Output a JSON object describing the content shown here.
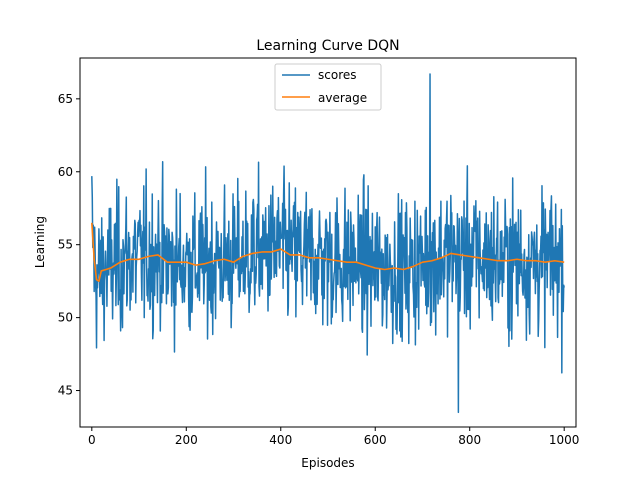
{
  "chart_data": {
    "type": "line",
    "title": "Learning Curve DQN",
    "xlabel": "Episodes",
    "ylabel": "Learning",
    "xlim": [
      -25,
      1025
    ],
    "ylim": [
      42.5,
      67.8
    ],
    "xticks": [
      0,
      200,
      400,
      600,
      800,
      1000
    ],
    "yticks": [
      45,
      50,
      55,
      60,
      65
    ],
    "xtick_labels": [
      "0",
      "200",
      "400",
      "600",
      "800",
      "1000"
    ],
    "ytick_labels": [
      "45",
      "50",
      "55",
      "60",
      "65"
    ],
    "grid": false,
    "legend": {
      "placement": "upper center",
      "entries": [
        "scores",
        "average"
      ]
    },
    "series": [
      {
        "name": "scores",
        "color": "#1f77b4",
        "x_range": [
          0,
          1000
        ],
        "y_min": 43.5,
        "y_max": 66.7,
        "note_values": "high-frequency noisy per-episode scores oscillating roughly between 45 and 63"
      },
      {
        "name": "average",
        "color": "#ff7f0e",
        "x": [
          0,
          5,
          10,
          15,
          20,
          30,
          40,
          60,
          80,
          100,
          120,
          140,
          160,
          180,
          200,
          220,
          240,
          260,
          280,
          300,
          320,
          340,
          360,
          380,
          400,
          420,
          440,
          460,
          480,
          500,
          520,
          540,
          560,
          580,
          600,
          620,
          640,
          660,
          680,
          700,
          720,
          740,
          760,
          780,
          800,
          820,
          840,
          860,
          880,
          900,
          920,
          940,
          960,
          980,
          1000
        ],
        "y": [
          56.5,
          54.0,
          52.6,
          52.5,
          53.2,
          53.3,
          53.4,
          53.8,
          54.0,
          54.0,
          54.2,
          54.3,
          53.8,
          53.8,
          53.8,
          53.6,
          53.7,
          53.9,
          54.0,
          53.8,
          54.2,
          54.4,
          54.5,
          54.5,
          54.7,
          54.3,
          54.3,
          54.1,
          54.1,
          54.0,
          53.9,
          53.8,
          53.8,
          53.6,
          53.4,
          53.3,
          53.4,
          53.3,
          53.5,
          53.8,
          53.9,
          54.1,
          54.4,
          54.3,
          54.2,
          54.1,
          54.0,
          53.9,
          53.9,
          54.0,
          53.9,
          53.9,
          53.8,
          53.9,
          53.8
        ]
      }
    ]
  }
}
